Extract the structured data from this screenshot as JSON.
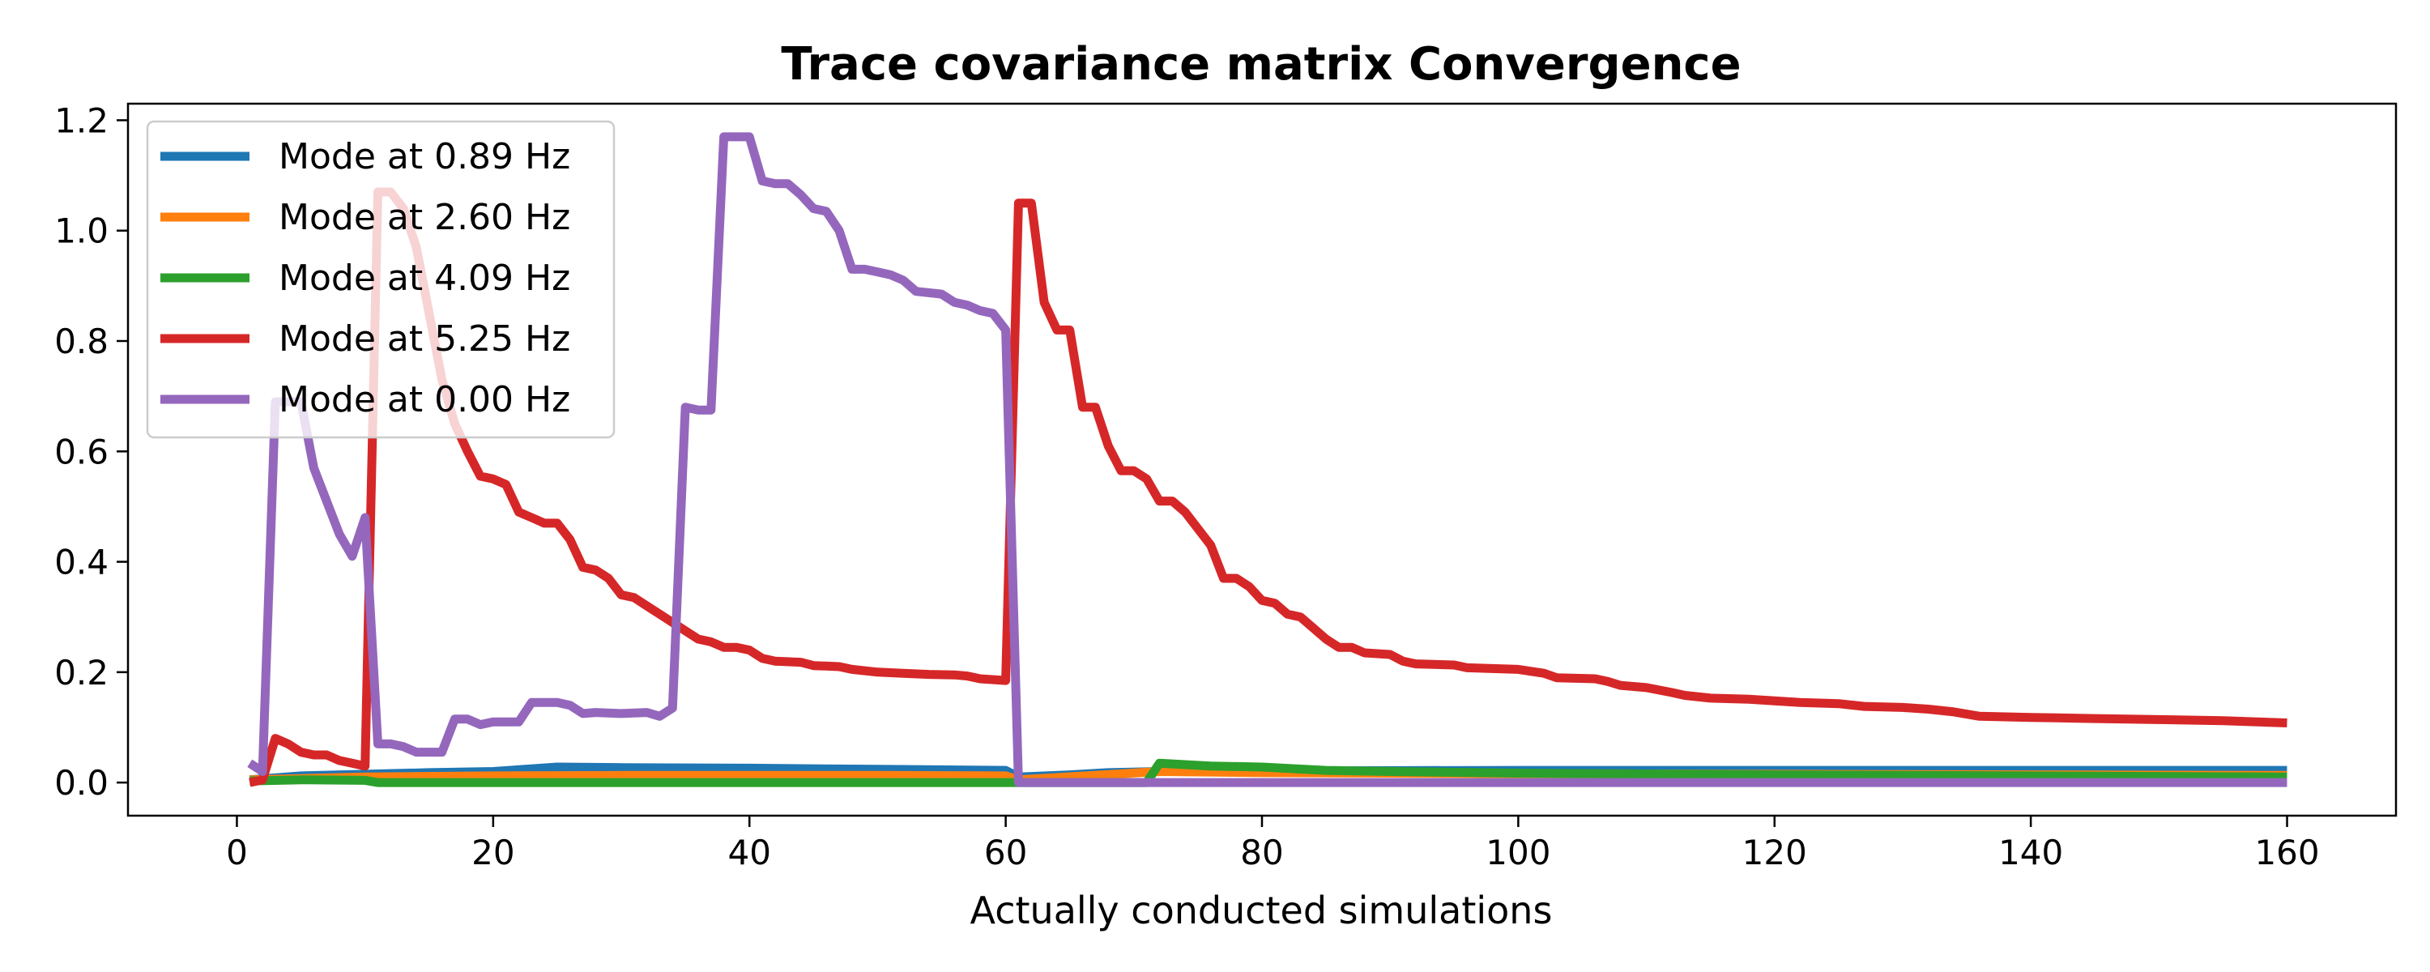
{
  "chart_data": {
    "type": "line",
    "title": "Trace covariance matrix Convergence",
    "xlabel": "Actually conducted simulations",
    "ylabel": "",
    "xlim": [
      -8.5,
      168.5
    ],
    "ylim": [
      -0.06,
      1.23
    ],
    "xticks": [
      0,
      20,
      40,
      60,
      80,
      100,
      120,
      140,
      160
    ],
    "yticks": [
      0.0,
      0.2,
      0.4,
      0.6,
      0.8,
      1.0,
      1.2
    ],
    "xtick_labels": [
      "0",
      "20",
      "40",
      "60",
      "80",
      "100",
      "120",
      "140",
      "160"
    ],
    "ytick_labels": [
      "0.0",
      "0.2",
      "0.4",
      "0.6",
      "0.8",
      "1.0",
      "1.2"
    ],
    "grid": false,
    "legend_position": "top-left",
    "series": [
      {
        "name": "Mode at 0.89 Hz",
        "color": "#1f77b4",
        "points": [
          [
            1,
            0.005
          ],
          [
            5,
            0.012
          ],
          [
            10,
            0.015
          ],
          [
            15,
            0.018
          ],
          [
            20,
            0.02
          ],
          [
            25,
            0.028
          ],
          [
            30,
            0.027
          ],
          [
            40,
            0.026
          ],
          [
            50,
            0.024
          ],
          [
            60,
            0.022
          ],
          [
            61,
            0.01
          ],
          [
            65,
            0.014
          ],
          [
            68,
            0.018
          ],
          [
            72,
            0.02
          ],
          [
            80,
            0.021
          ],
          [
            100,
            0.022
          ],
          [
            120,
            0.022
          ],
          [
            140,
            0.022
          ],
          [
            160,
            0.022
          ]
        ]
      },
      {
        "name": "Mode at 2.60 Hz",
        "color": "#ff7f0e",
        "points": [
          [
            1,
            0.005
          ],
          [
            10,
            0.01
          ],
          [
            20,
            0.012
          ],
          [
            30,
            0.013
          ],
          [
            40,
            0.013
          ],
          [
            50,
            0.013
          ],
          [
            60,
            0.012
          ],
          [
            61,
            0.005
          ],
          [
            72,
            0.02
          ],
          [
            80,
            0.018
          ],
          [
            100,
            0.016
          ],
          [
            120,
            0.015
          ],
          [
            140,
            0.014
          ],
          [
            160,
            0.013
          ]
        ]
      },
      {
        "name": "Mode at 4.09 Hz",
        "color": "#2ca02c",
        "points": [
          [
            1,
            0.003
          ],
          [
            5,
            0.005
          ],
          [
            10,
            0.004
          ],
          [
            11,
            0.0
          ],
          [
            20,
            0.0
          ],
          [
            40,
            0.0
          ],
          [
            60,
            0.0
          ],
          [
            61,
            0.0
          ],
          [
            71,
            0.0
          ],
          [
            72,
            0.035
          ],
          [
            76,
            0.03
          ],
          [
            80,
            0.028
          ],
          [
            85,
            0.022
          ],
          [
            90,
            0.02
          ],
          [
            100,
            0.017
          ],
          [
            120,
            0.014
          ],
          [
            140,
            0.012
          ],
          [
            160,
            0.01
          ]
        ]
      },
      {
        "name": "Mode at 5.25 Hz",
        "color": "#d62728",
        "points": [
          [
            1,
            0.0
          ],
          [
            2,
            0.005
          ],
          [
            3,
            0.08
          ],
          [
            4,
            0.07
          ],
          [
            5,
            0.055
          ],
          [
            6,
            0.05
          ],
          [
            7,
            0.05
          ],
          [
            8,
            0.04
          ],
          [
            9,
            0.035
          ],
          [
            10,
            0.03
          ],
          [
            11,
            1.07
          ],
          [
            12,
            1.07
          ],
          [
            13,
            1.04
          ],
          [
            14,
            0.97
          ],
          [
            15,
            0.85
          ],
          [
            16,
            0.73
          ],
          [
            17,
            0.65
          ],
          [
            18,
            0.6
          ],
          [
            19,
            0.555
          ],
          [
            20,
            0.55
          ],
          [
            21,
            0.54
          ],
          [
            22,
            0.49
          ],
          [
            23,
            0.48
          ],
          [
            24,
            0.47
          ],
          [
            25,
            0.47
          ],
          [
            26,
            0.44
          ],
          [
            27,
            0.39
          ],
          [
            28,
            0.385
          ],
          [
            29,
            0.37
          ],
          [
            30,
            0.34
          ],
          [
            31,
            0.335
          ],
          [
            32,
            0.32
          ],
          [
            33,
            0.305
          ],
          [
            34,
            0.29
          ],
          [
            35,
            0.275
          ],
          [
            36,
            0.26
          ],
          [
            37,
            0.255
          ],
          [
            38,
            0.245
          ],
          [
            39,
            0.245
          ],
          [
            40,
            0.24
          ],
          [
            41,
            0.225
          ],
          [
            42,
            0.22
          ],
          [
            44,
            0.218
          ],
          [
            45,
            0.212
          ],
          [
            47,
            0.21
          ],
          [
            48,
            0.205
          ],
          [
            50,
            0.2
          ],
          [
            52,
            0.198
          ],
          [
            54,
            0.196
          ],
          [
            56,
            0.195
          ],
          [
            57,
            0.193
          ],
          [
            58,
            0.188
          ],
          [
            60,
            0.185
          ],
          [
            61,
            1.05
          ],
          [
            62,
            1.05
          ],
          [
            63,
            0.87
          ],
          [
            64,
            0.82
          ],
          [
            65,
            0.82
          ],
          [
            66,
            0.68
          ],
          [
            67,
            0.68
          ],
          [
            68,
            0.61
          ],
          [
            69,
            0.565
          ],
          [
            70,
            0.565
          ],
          [
            71,
            0.55
          ],
          [
            72,
            0.51
          ],
          [
            73,
            0.51
          ],
          [
            74,
            0.49
          ],
          [
            75,
            0.46
          ],
          [
            76,
            0.43
          ],
          [
            77,
            0.37
          ],
          [
            78,
            0.37
          ],
          [
            79,
            0.355
          ],
          [
            80,
            0.33
          ],
          [
            81,
            0.325
          ],
          [
            82,
            0.305
          ],
          [
            83,
            0.3
          ],
          [
            84,
            0.28
          ],
          [
            85,
            0.26
          ],
          [
            86,
            0.245
          ],
          [
            87,
            0.245
          ],
          [
            88,
            0.235
          ],
          [
            90,
            0.232
          ],
          [
            91,
            0.22
          ],
          [
            92,
            0.215
          ],
          [
            95,
            0.213
          ],
          [
            96,
            0.208
          ],
          [
            100,
            0.205
          ],
          [
            102,
            0.198
          ],
          [
            103,
            0.19
          ],
          [
            106,
            0.188
          ],
          [
            107,
            0.183
          ],
          [
            108,
            0.176
          ],
          [
            110,
            0.172
          ],
          [
            112,
            0.163
          ],
          [
            113,
            0.158
          ],
          [
            115,
            0.153
          ],
          [
            118,
            0.151
          ],
          [
            120,
            0.148
          ],
          [
            122,
            0.145
          ],
          [
            125,
            0.143
          ],
          [
            127,
            0.138
          ],
          [
            130,
            0.136
          ],
          [
            132,
            0.133
          ],
          [
            134,
            0.128
          ],
          [
            136,
            0.12
          ],
          [
            140,
            0.118
          ],
          [
            145,
            0.116
          ],
          [
            150,
            0.114
          ],
          [
            155,
            0.112
          ],
          [
            160,
            0.108
          ]
        ]
      },
      {
        "name": "Mode at 0.00 Hz",
        "color": "#9467bd",
        "points": [
          [
            1,
            0.035
          ],
          [
            2,
            0.02
          ],
          [
            3,
            0.69
          ],
          [
            4,
            0.69
          ],
          [
            5,
            0.69
          ],
          [
            6,
            0.57
          ],
          [
            7,
            0.51
          ],
          [
            8,
            0.45
          ],
          [
            9,
            0.41
          ],
          [
            10,
            0.48
          ],
          [
            11,
            0.07
          ],
          [
            12,
            0.07
          ],
          [
            13,
            0.065
          ],
          [
            14,
            0.055
          ],
          [
            15,
            0.055
          ],
          [
            16,
            0.055
          ],
          [
            17,
            0.115
          ],
          [
            18,
            0.115
          ],
          [
            19,
            0.105
          ],
          [
            20,
            0.11
          ],
          [
            22,
            0.11
          ],
          [
            23,
            0.145
          ],
          [
            25,
            0.145
          ],
          [
            26,
            0.14
          ],
          [
            27,
            0.125
          ],
          [
            28,
            0.127
          ],
          [
            30,
            0.125
          ],
          [
            32,
            0.127
          ],
          [
            33,
            0.12
          ],
          [
            34,
            0.135
          ],
          [
            35,
            0.68
          ],
          [
            36,
            0.675
          ],
          [
            37,
            0.675
          ],
          [
            38,
            1.17
          ],
          [
            39,
            1.17
          ],
          [
            40,
            1.17
          ],
          [
            41,
            1.09
          ],
          [
            42,
            1.085
          ],
          [
            43,
            1.085
          ],
          [
            44,
            1.065
          ],
          [
            45,
            1.04
          ],
          [
            46,
            1.035
          ],
          [
            47,
            1.0
          ],
          [
            48,
            0.93
          ],
          [
            49,
            0.93
          ],
          [
            50,
            0.925
          ],
          [
            51,
            0.92
          ],
          [
            52,
            0.91
          ],
          [
            53,
            0.89
          ],
          [
            55,
            0.885
          ],
          [
            56,
            0.87
          ],
          [
            57,
            0.865
          ],
          [
            58,
            0.855
          ],
          [
            59,
            0.85
          ],
          [
            60,
            0.82
          ],
          [
            61,
            0.0
          ],
          [
            70,
            0.0
          ],
          [
            80,
            0.0
          ],
          [
            100,
            0.0
          ],
          [
            120,
            0.0
          ],
          [
            140,
            0.0
          ],
          [
            160,
            0.0
          ]
        ]
      }
    ]
  }
}
